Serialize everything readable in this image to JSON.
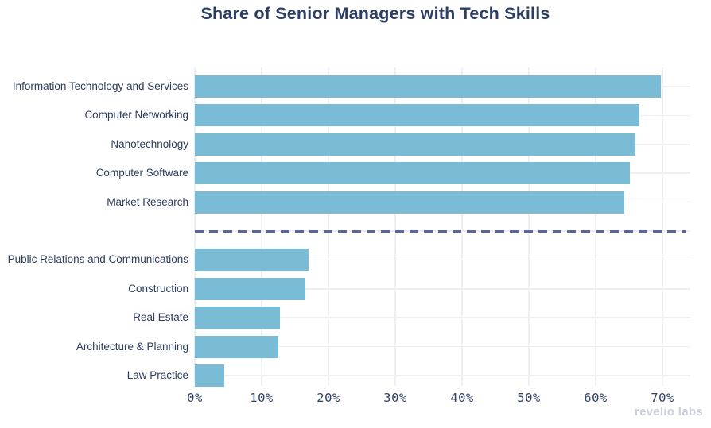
{
  "watermark": {
    "brand": "revelio labs"
  },
  "chart_data": {
    "type": "bar",
    "orientation": "horizontal",
    "title": "Share of Senior Managers with Tech Skills",
    "xlabel": "",
    "ylabel": "",
    "value_unit": "%",
    "categories": [
      "Information Technology and Services",
      "Computer Networking",
      "Nanotechnology",
      "Computer Software",
      "Market Research",
      "Public Relations and Communications",
      "Construction",
      "Real Estate",
      "Architecture & Planning",
      "Law Practice"
    ],
    "values": [
      69.8,
      66.5,
      65.9,
      65.1,
      64.3,
      17.0,
      16.5,
      12.7,
      12.5,
      4.4
    ],
    "separator_after_index": 4,
    "separator_style": "dashed",
    "x_tick_labels": [
      "0%",
      "10%",
      "20%",
      "30%",
      "40%",
      "50%",
      "60%",
      "70%"
    ],
    "x_tick_values": [
      0,
      10,
      20,
      30,
      40,
      50,
      60,
      70
    ],
    "xlim": [
      0,
      74
    ],
    "grid": true,
    "legend_position": "none",
    "colors": {
      "bar": "#7abcd6",
      "separator": "#56679e",
      "grid": "#edeff2",
      "title": "#2b3e63",
      "label": "#2c3d5e",
      "tick": "#2e4066",
      "watermark": "#c9ced8"
    }
  }
}
